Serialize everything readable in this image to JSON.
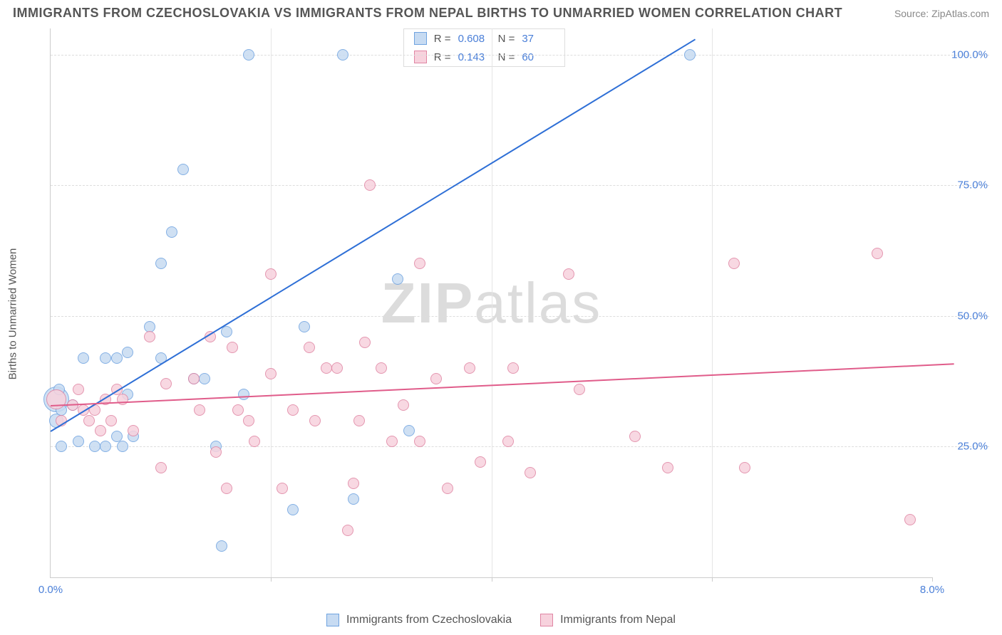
{
  "title": "IMMIGRANTS FROM CZECHOSLOVAKIA VS IMMIGRANTS FROM NEPAL BIRTHS TO UNMARRIED WOMEN CORRELATION CHART",
  "source": "Source: ZipAtlas.com",
  "ylabel": "Births to Unmarried Women",
  "watermark_a": "ZIP",
  "watermark_b": "atlas",
  "chart": {
    "type": "scatter",
    "xlim": [
      0,
      8
    ],
    "ylim": [
      0,
      105
    ],
    "xticks": [
      0,
      2,
      4,
      6,
      8
    ],
    "xtick_labels": [
      "0.0%",
      "",
      "",
      "",
      "8.0%"
    ],
    "yticks": [
      25,
      50,
      75,
      100
    ],
    "ytick_labels": [
      "25.0%",
      "50.0%",
      "75.0%",
      "100.0%"
    ],
    "background_color": "#ffffff",
    "grid_color": "#dddddd",
    "axis_color": "#cccccc",
    "tick_label_color": "#4a7fd8",
    "series": [
      {
        "name": "Immigrants from Czechoslovakia",
        "marker_fill": "#c7dbf2",
        "marker_stroke": "#6fa3e0",
        "marker_radius": 8,
        "line_color": "#2e6fd6",
        "R": "0.608",
        "N": "37",
        "trend": {
          "x1": 0,
          "y1": 28,
          "x2": 5.85,
          "y2": 103
        },
        "points": [
          [
            0.05,
            34,
            18
          ],
          [
            0.05,
            30,
            10
          ],
          [
            0.08,
            36,
            8
          ],
          [
            0.1,
            32,
            8
          ],
          [
            0.1,
            25,
            8
          ],
          [
            0.2,
            33,
            8
          ],
          [
            0.25,
            26,
            8
          ],
          [
            0.3,
            42,
            8
          ],
          [
            0.4,
            25,
            8
          ],
          [
            0.5,
            25,
            8
          ],
          [
            0.5,
            42,
            8
          ],
          [
            0.6,
            27,
            8
          ],
          [
            0.6,
            42,
            8
          ],
          [
            0.65,
            25,
            8
          ],
          [
            0.7,
            35,
            8
          ],
          [
            0.7,
            43,
            8
          ],
          [
            0.75,
            27,
            8
          ],
          [
            0.9,
            48,
            8
          ],
          [
            1.0,
            60,
            8
          ],
          [
            1.0,
            42,
            8
          ],
          [
            1.1,
            66,
            8
          ],
          [
            1.2,
            78,
            8
          ],
          [
            1.3,
            38,
            8
          ],
          [
            1.4,
            38,
            8
          ],
          [
            1.5,
            25,
            8
          ],
          [
            1.55,
            6,
            8
          ],
          [
            1.6,
            47,
            8
          ],
          [
            1.75,
            35,
            8
          ],
          [
            1.8,
            100,
            8
          ],
          [
            2.2,
            13,
            8
          ],
          [
            2.3,
            48,
            8
          ],
          [
            2.65,
            100,
            8
          ],
          [
            2.75,
            15,
            8
          ],
          [
            3.15,
            57,
            8
          ],
          [
            3.25,
            28,
            8
          ],
          [
            5.8,
            100,
            8
          ]
        ]
      },
      {
        "name": "Immigrants from Nepal",
        "marker_fill": "#f7d2dd",
        "marker_stroke": "#e085a3",
        "marker_radius": 8,
        "line_color": "#e05c8a",
        "R": "0.143",
        "N": "60",
        "trend": {
          "x1": 0,
          "y1": 33,
          "x2": 8.2,
          "y2": 41
        },
        "points": [
          [
            0.05,
            34,
            14
          ],
          [
            0.1,
            30,
            8
          ],
          [
            0.2,
            33,
            8
          ],
          [
            0.25,
            36,
            8
          ],
          [
            0.3,
            32,
            8
          ],
          [
            0.35,
            30,
            8
          ],
          [
            0.4,
            32,
            8
          ],
          [
            0.45,
            28,
            8
          ],
          [
            0.5,
            34,
            8
          ],
          [
            0.55,
            30,
            8
          ],
          [
            0.6,
            36,
            8
          ],
          [
            0.65,
            34,
            8
          ],
          [
            0.75,
            28,
            8
          ],
          [
            0.9,
            46,
            8
          ],
          [
            1.0,
            21,
            8
          ],
          [
            1.05,
            37,
            8
          ],
          [
            1.3,
            38,
            8
          ],
          [
            1.35,
            32,
            8
          ],
          [
            1.45,
            46,
            8
          ],
          [
            1.5,
            24,
            8
          ],
          [
            1.6,
            17,
            8
          ],
          [
            1.65,
            44,
            8
          ],
          [
            1.7,
            32,
            8
          ],
          [
            1.8,
            30,
            8
          ],
          [
            1.85,
            26,
            8
          ],
          [
            2.0,
            39,
            8
          ],
          [
            2.0,
            58,
            8
          ],
          [
            2.1,
            17,
            8
          ],
          [
            2.2,
            32,
            8
          ],
          [
            2.35,
            44,
            8
          ],
          [
            2.4,
            30,
            8
          ],
          [
            2.5,
            40,
            8
          ],
          [
            2.6,
            40,
            8
          ],
          [
            2.7,
            9,
            8
          ],
          [
            2.75,
            18,
            8
          ],
          [
            2.8,
            30,
            8
          ],
          [
            2.85,
            45,
            8
          ],
          [
            2.9,
            75,
            8
          ],
          [
            3.0,
            40,
            8
          ],
          [
            3.1,
            26,
            8
          ],
          [
            3.2,
            33,
            8
          ],
          [
            3.35,
            26,
            8
          ],
          [
            3.35,
            60,
            8
          ],
          [
            3.5,
            38,
            8
          ],
          [
            3.6,
            17,
            8
          ],
          [
            3.8,
            40,
            8
          ],
          [
            3.9,
            22,
            8
          ],
          [
            4.15,
            26,
            8
          ],
          [
            4.2,
            40,
            8
          ],
          [
            4.35,
            20,
            8
          ],
          [
            4.7,
            58,
            8
          ],
          [
            4.8,
            36,
            8
          ],
          [
            5.3,
            27,
            8
          ],
          [
            5.6,
            21,
            8
          ],
          [
            6.2,
            60,
            8
          ],
          [
            6.3,
            21,
            8
          ],
          [
            7.5,
            62,
            8
          ],
          [
            7.8,
            11,
            8
          ]
        ]
      }
    ]
  },
  "stats_labels": {
    "R": "R =",
    "N": "N ="
  },
  "legend": {
    "items": [
      {
        "label": "Immigrants from Czechoslovakia",
        "fill": "#c7dbf2",
        "stroke": "#6fa3e0"
      },
      {
        "label": "Immigrants from Nepal",
        "fill": "#f7d2dd",
        "stroke": "#e085a3"
      }
    ]
  }
}
